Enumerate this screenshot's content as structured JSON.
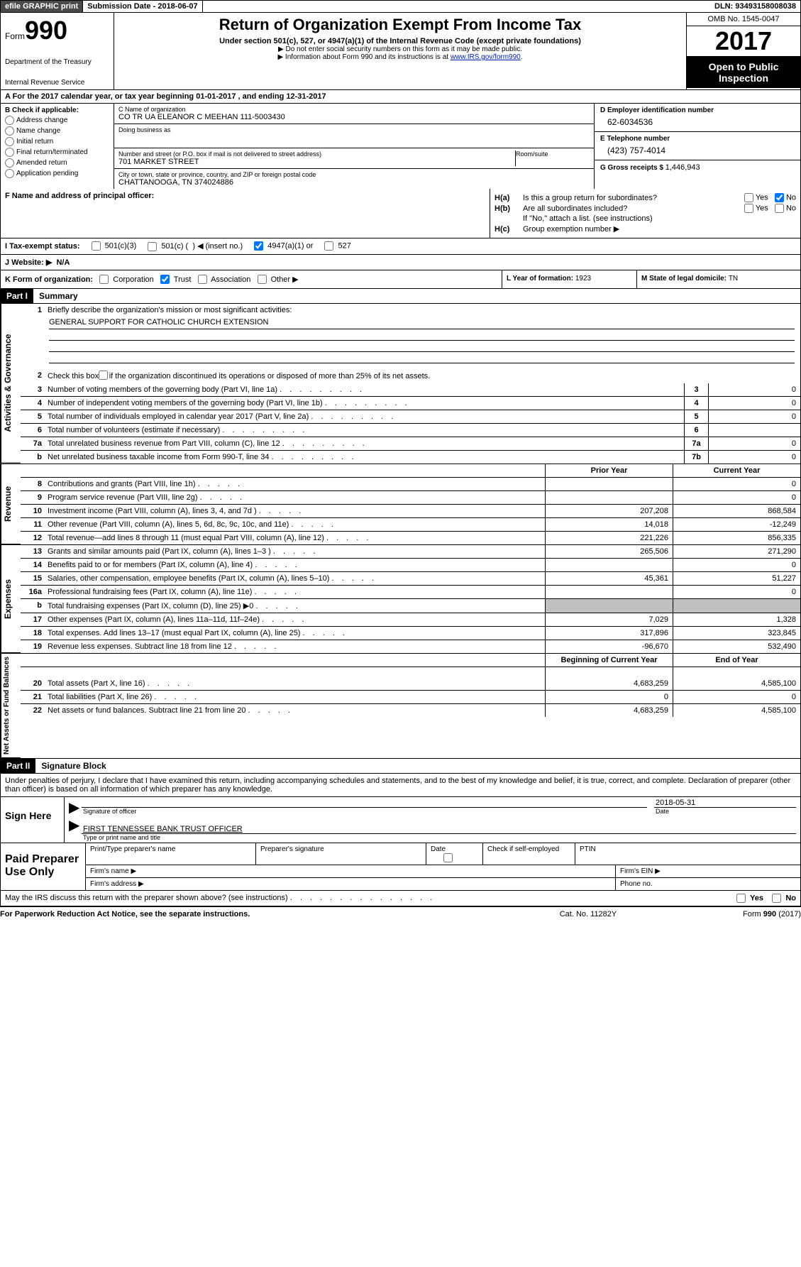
{
  "topbar": {
    "efile": "efile GRAPHIC print",
    "subdate_label": "Submission Date - ",
    "subdate": "2018-06-07",
    "dln_label": "DLN: ",
    "dln": "93493158008038"
  },
  "header": {
    "form_prefix": "Form",
    "form_number": "990",
    "dept": "Department of the Treasury",
    "irs": "Internal Revenue Service",
    "title": "Return of Organization Exempt From Income Tax",
    "subtitle": "Under section 501(c), 527, or 4947(a)(1) of the Internal Revenue Code (except private foundations)",
    "note1": "▶ Do not enter social security numbers on this form as it may be made public.",
    "note2_pre": "▶ Information about Form 990 and its instructions is at ",
    "note2_link": "www.IRS.gov/form990",
    "omb": "OMB No. 1545-0047",
    "year": "2017",
    "open_public": "Open to Public Inspection"
  },
  "sectionA": {
    "text_pre": "A   For the 2017 calendar year, or tax year beginning ",
    "begin": "01-01-2017",
    "mid": "   , and ending ",
    "end": "12-31-2017"
  },
  "colB": {
    "label": "B Check if applicable:",
    "items": [
      "Address change",
      "Name change",
      "Initial return",
      "Final return/terminated",
      "Amended return",
      "Application pending"
    ]
  },
  "colC": {
    "name_lbl": "C Name of organization",
    "name": "CO TR UA ELEANOR C MEEHAN 111-5003430",
    "dba_lbl": "Doing business as",
    "dba": "",
    "addr_lbl": "Number and street (or P.O. box if mail is not delivered to street address)",
    "addr": "701 MARKET STREET",
    "room_lbl": "Room/suite",
    "city_lbl": "City or town, state or province, country, and ZIP or foreign postal code",
    "city": "CHATTANOOGA, TN  374024886",
    "f_label": "F Name and address of principal officer:"
  },
  "colD": {
    "ein_lbl": "D Employer identification number",
    "ein": "62-6034536",
    "tel_lbl": "E Telephone number",
    "tel": "(423) 757-4014",
    "gross_lbl": "G Gross receipts $ ",
    "gross": "1,446,943"
  },
  "sectionH": {
    "a_text": "Is this a group return for subordinates?",
    "b_text": "Are all subordinates included?",
    "b_note": "If \"No,\" attach a list. (see instructions)",
    "c_text": "Group exemption number ▶",
    "yes": "Yes",
    "no": "No"
  },
  "taxStatus": {
    "label": "I   Tax-exempt status:",
    "opt1": "501(c)(3)",
    "opt2_pre": "501(c) (",
    "opt2_post": ") ◀ (insert no.)",
    "opt3": "4947(a)(1) or",
    "opt4": "527"
  },
  "website": {
    "label": "J   Website: ▶",
    "value": "N/A"
  },
  "rowK": {
    "label": "K Form of organization:",
    "opts": [
      "Corporation",
      "Trust",
      "Association",
      "Other ▶"
    ],
    "l_label": "L Year of formation: ",
    "l_val": "1923",
    "m_label": "M State of legal domicile: ",
    "m_val": "TN"
  },
  "part1": {
    "header": "Part I",
    "title": "Summary",
    "mission_lbl": "Briefly describe the organization's mission or most significant activities:",
    "mission": "GENERAL SUPPORT FOR CATHOLIC CHURCH EXTENSION",
    "line2": "Check this box ▶        if the organization discontinued its operations or disposed of more than 25% of its net assets.",
    "lines_gov": [
      {
        "n": "3",
        "t": "Number of voting members of the governing body (Part VI, line 1a)",
        "b": "3",
        "v": "0"
      },
      {
        "n": "4",
        "t": "Number of independent voting members of the governing body (Part VI, line 1b)",
        "b": "4",
        "v": "0"
      },
      {
        "n": "5",
        "t": "Total number of individuals employed in calendar year 2017 (Part V, line 2a)",
        "b": "5",
        "v": "0"
      },
      {
        "n": "6",
        "t": "Total number of volunteers (estimate if necessary)",
        "b": "6",
        "v": ""
      },
      {
        "n": "7a",
        "t": "Total unrelated business revenue from Part VIII, column (C), line 12",
        "b": "7a",
        "v": "0"
      },
      {
        "n": "b",
        "t": "Net unrelated business taxable income from Form 990-T, line 34",
        "b": "7b",
        "v": "0"
      }
    ],
    "col_hdr_prior": "Prior Year",
    "col_hdr_current": "Current Year",
    "lines_rev": [
      {
        "n": "8",
        "t": "Contributions and grants (Part VIII, line 1h)",
        "p": "",
        "c": "0"
      },
      {
        "n": "9",
        "t": "Program service revenue (Part VIII, line 2g)",
        "p": "",
        "c": "0"
      },
      {
        "n": "10",
        "t": "Investment income (Part VIII, column (A), lines 3, 4, and 7d )",
        "p": "207,208",
        "c": "868,584"
      },
      {
        "n": "11",
        "t": "Other revenue (Part VIII, column (A), lines 5, 6d, 8c, 9c, 10c, and 11e)",
        "p": "14,018",
        "c": "-12,249"
      },
      {
        "n": "12",
        "t": "Total revenue—add lines 8 through 11 (must equal Part VIII, column (A), line 12)",
        "p": "221,226",
        "c": "856,335"
      }
    ],
    "lines_exp": [
      {
        "n": "13",
        "t": "Grants and similar amounts paid (Part IX, column (A), lines 1–3 )",
        "p": "265,506",
        "c": "271,290"
      },
      {
        "n": "14",
        "t": "Benefits paid to or for members (Part IX, column (A), line 4)",
        "p": "",
        "c": "0"
      },
      {
        "n": "15",
        "t": "Salaries, other compensation, employee benefits (Part IX, column (A), lines 5–10)",
        "p": "45,361",
        "c": "51,227"
      },
      {
        "n": "16a",
        "t": "Professional fundraising fees (Part IX, column (A), line 11e)",
        "p": "",
        "c": "0"
      },
      {
        "n": "b",
        "t": "Total fundraising expenses (Part IX, column (D), line 25) ▶0",
        "p": "GREY",
        "c": "GREY"
      },
      {
        "n": "17",
        "t": "Other expenses (Part IX, column (A), lines 11a–11d, 11f–24e)",
        "p": "7,029",
        "c": "1,328"
      },
      {
        "n": "18",
        "t": "Total expenses. Add lines 13–17 (must equal Part IX, column (A), line 25)",
        "p": "317,896",
        "c": "323,845"
      },
      {
        "n": "19",
        "t": "Revenue less expenses. Subtract line 18 from line 12",
        "p": "-96,670",
        "c": "532,490"
      }
    ],
    "col_hdr_begin": "Beginning of Current Year",
    "col_hdr_end": "End of Year",
    "lines_net": [
      {
        "n": "20",
        "t": "Total assets (Part X, line 16)",
        "p": "4,683,259",
        "c": "4,585,100"
      },
      {
        "n": "21",
        "t": "Total liabilities (Part X, line 26)",
        "p": "0",
        "c": "0"
      },
      {
        "n": "22",
        "t": "Net assets or fund balances. Subtract line 21 from line 20",
        "p": "4,683,259",
        "c": "4,585,100"
      }
    ],
    "vtab_gov": "Activities & Governance",
    "vtab_rev": "Revenue",
    "vtab_exp": "Expenses",
    "vtab_net": "Net Assets or Fund Balances"
  },
  "part2": {
    "header": "Part II",
    "title": "Signature Block",
    "perjury": "Under penalties of perjury, I declare that I have examined this return, including accompanying schedules and statements, and to the best of my knowledge and belief, it is true, correct, and complete. Declaration of preparer (other than officer) is based on all information of which preparer has any knowledge.",
    "sign_here": "Sign Here",
    "sig_officer_lbl": "Signature of officer",
    "sig_date": "2018-05-31",
    "sig_date_lbl": "Date",
    "sig_name": "FIRST TENNESSEE BANK TRUST OFFICER",
    "sig_name_lbl": "Type or print name and title",
    "paid_prep": "Paid Preparer Use Only",
    "prep_name_lbl": "Print/Type preparer's name",
    "prep_sig_lbl": "Preparer's signature",
    "prep_date_lbl": "Date",
    "prep_check_lbl": "Check        if self-employed",
    "prep_ptin_lbl": "PTIN",
    "firm_name_lbl": "Firm's name    ▶",
    "firm_ein_lbl": "Firm's EIN ▶",
    "firm_addr_lbl": "Firm's address ▶",
    "firm_phone_lbl": "Phone no."
  },
  "discuss": {
    "text": "May the IRS discuss this return with the preparer shown above? (see instructions)",
    "yes": "Yes",
    "no": "No"
  },
  "footer": {
    "left": "For Paperwork Reduction Act Notice, see the separate instructions.",
    "center": "Cat. No. 11282Y",
    "right_pre": "Form ",
    "right_form": "990",
    "right_post": " (2017)"
  }
}
